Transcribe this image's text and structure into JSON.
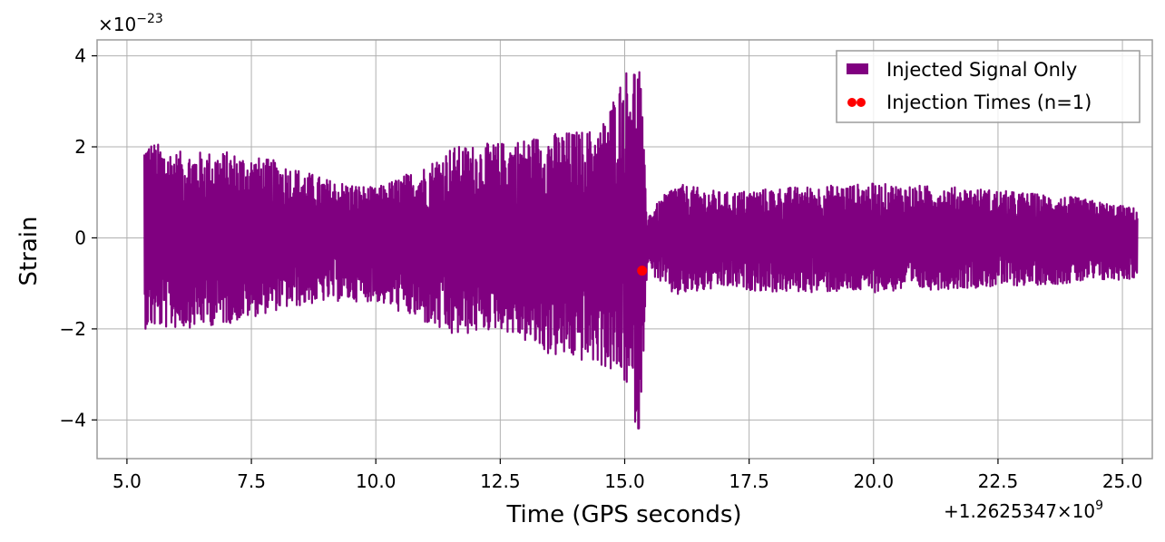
{
  "chart_data": {
    "type": "line",
    "xlabel": "Time (GPS seconds)",
    "ylabel": "Strain",
    "x_offset_label": "+1.2625347×10",
    "x_offset_exp": "9",
    "y_multiplier_label": "×10",
    "y_multiplier_exp": "−23",
    "xlim": [
      4.4,
      25.6
    ],
    "ylim": [
      -4.85,
      4.35
    ],
    "grid": true,
    "x_ticks": [
      {
        "value": 5.0,
        "label": "5.0"
      },
      {
        "value": 7.5,
        "label": "7.5"
      },
      {
        "value": 10.0,
        "label": "10.0"
      },
      {
        "value": 12.5,
        "label": "12.5"
      },
      {
        "value": 15.0,
        "label": "15.0"
      },
      {
        "value": 17.5,
        "label": "17.5"
      },
      {
        "value": 20.0,
        "label": "20.0"
      },
      {
        "value": 22.5,
        "label": "22.5"
      },
      {
        "value": 25.0,
        "label": "25.0"
      }
    ],
    "y_ticks": [
      {
        "value": 4,
        "label": "4"
      },
      {
        "value": 2,
        "label": "2"
      },
      {
        "value": 0,
        "label": "0"
      },
      {
        "value": -2,
        "label": "−2"
      },
      {
        "value": -4,
        "label": "−4"
      }
    ],
    "legend_position": "top-right",
    "series": [
      {
        "name": "Injected Signal Only",
        "type": "line",
        "color": "#800080",
        "envelope": [
          {
            "x": 5.35,
            "upper": 2.2,
            "lower": -2.0
          },
          {
            "x": 6.0,
            "upper": 1.9,
            "lower": -2.0
          },
          {
            "x": 7.0,
            "upper": 1.9,
            "lower": -1.9
          },
          {
            "x": 8.0,
            "upper": 1.7,
            "lower": -1.6
          },
          {
            "x": 9.0,
            "upper": 1.3,
            "lower": -1.4
          },
          {
            "x": 10.0,
            "upper": 1.1,
            "lower": -1.4
          },
          {
            "x": 11.0,
            "upper": 1.6,
            "lower": -1.9
          },
          {
            "x": 11.5,
            "upper": 2.0,
            "lower": -2.2
          },
          {
            "x": 12.5,
            "upper": 2.1,
            "lower": -2.0
          },
          {
            "x": 13.5,
            "upper": 2.3,
            "lower": -2.6
          },
          {
            "x": 14.5,
            "upper": 2.4,
            "lower": -2.8
          },
          {
            "x": 15.0,
            "upper": 3.7,
            "lower": -3.2
          },
          {
            "x": 15.3,
            "upper": 3.95,
            "lower": -4.45
          },
          {
            "x": 15.45,
            "upper": 0.5,
            "lower": -0.7
          },
          {
            "x": 16.0,
            "upper": 1.2,
            "lower": -1.3
          },
          {
            "x": 17.0,
            "upper": 1.0,
            "lower": -1.1
          },
          {
            "x": 18.0,
            "upper": 1.1,
            "lower": -1.2
          },
          {
            "x": 20.0,
            "upper": 1.2,
            "lower": -1.2
          },
          {
            "x": 22.0,
            "upper": 1.1,
            "lower": -1.1
          },
          {
            "x": 24.0,
            "upper": 0.9,
            "lower": -1.0
          },
          {
            "x": 25.3,
            "upper": 0.65,
            "lower": -0.9
          }
        ]
      },
      {
        "name": "Injection Times (n=1)",
        "type": "scatter",
        "color": "#ff0000",
        "points": [
          {
            "x": 15.35,
            "y": -0.72
          }
        ]
      }
    ]
  }
}
